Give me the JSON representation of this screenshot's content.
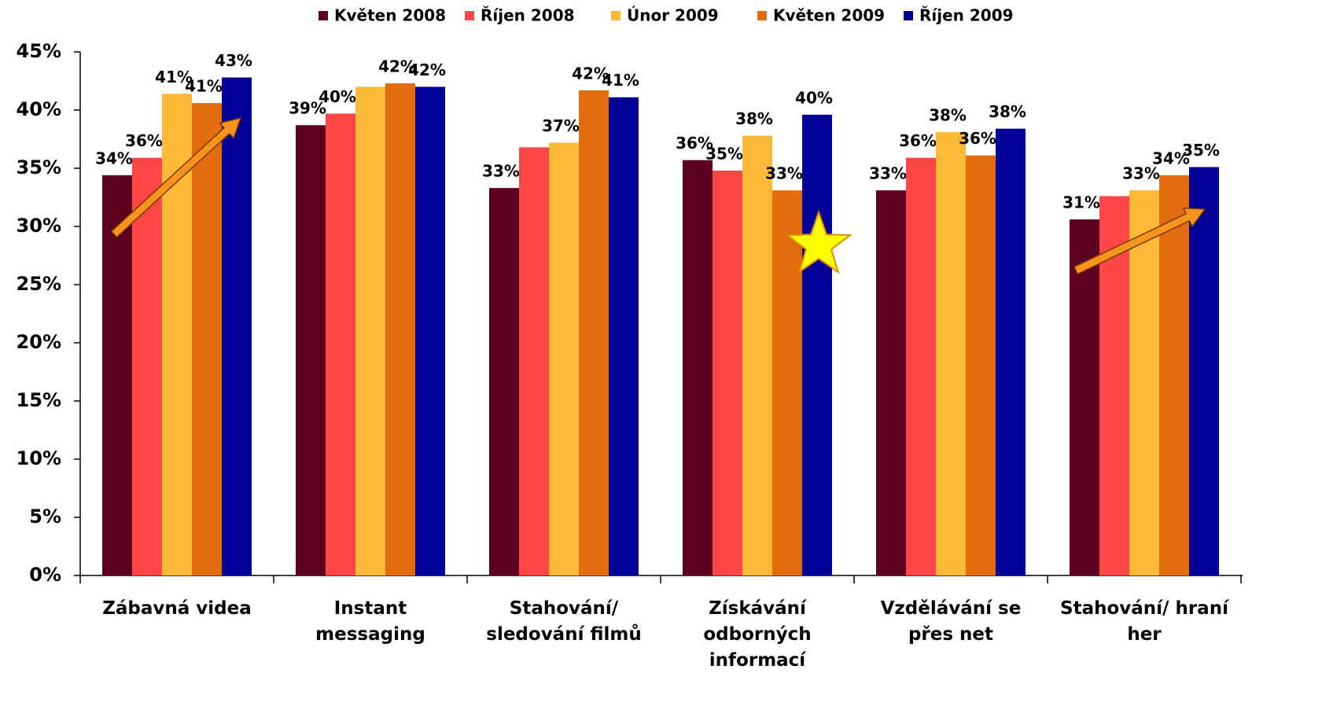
{
  "chart_data": {
    "type": "bar",
    "categories": [
      "Zábavná videa",
      "Instant\nmessaging",
      "Stahování/\nsledování filmů",
      "Získávání\nodborných\ninformací",
      "Vzdělávání se\npřes net",
      "Stahování/ hraní\nher"
    ],
    "series": [
      {
        "name": "Květen 2008",
        "color": "#5e0020",
        "values": [
          34.4,
          38.7,
          33.3,
          35.7,
          33.1,
          30.6
        ],
        "value_labels": [
          "34%",
          "39%",
          "33%",
          "36%",
          "33%",
          "31%"
        ]
      },
      {
        "name": "Říjen 2008",
        "color": "#ff4646",
        "values": [
          35.9,
          39.7,
          36.8,
          34.8,
          35.9,
          32.6
        ],
        "value_labels": [
          "36%",
          "40%",
          null,
          "35%",
          "36%",
          null
        ]
      },
      {
        "name": "Únor 2009",
        "color": "#fbb937",
        "values": [
          41.4,
          42.0,
          37.2,
          37.8,
          38.1,
          33.1
        ],
        "value_labels": [
          "41%",
          null,
          "37%",
          "38%",
          "38%",
          "33%"
        ]
      },
      {
        "name": "Květen 2009",
        "color": "#e36c0e",
        "values": [
          40.6,
          42.3,
          41.7,
          33.1,
          36.1,
          34.4
        ],
        "value_labels": [
          "41%",
          "42%",
          "42%",
          "33%",
          "36%",
          "34%"
        ]
      },
      {
        "name": "Říjen 2009",
        "color": "#000096",
        "values": [
          42.8,
          42.0,
          41.1,
          39.6,
          38.4,
          35.1
        ],
        "value_labels": [
          "43%",
          "42%",
          "41%",
          "40%",
          "38%",
          "35%"
        ]
      }
    ],
    "ylim": [
      0,
      45
    ],
    "yticks": [
      {
        "value": 0,
        "label": "0%"
      },
      {
        "value": 5,
        "label": "5%"
      },
      {
        "value": 10,
        "label": "10%"
      },
      {
        "value": 15,
        "label": "15%"
      },
      {
        "value": 20,
        "label": "20%"
      },
      {
        "value": 25,
        "label": "25%"
      },
      {
        "value": 30,
        "label": "30%"
      },
      {
        "value": 35,
        "label": "35%"
      },
      {
        "value": 40,
        "label": "40%"
      },
      {
        "value": 45,
        "label": "45%"
      }
    ],
    "grid": false,
    "legend": "top"
  }
}
